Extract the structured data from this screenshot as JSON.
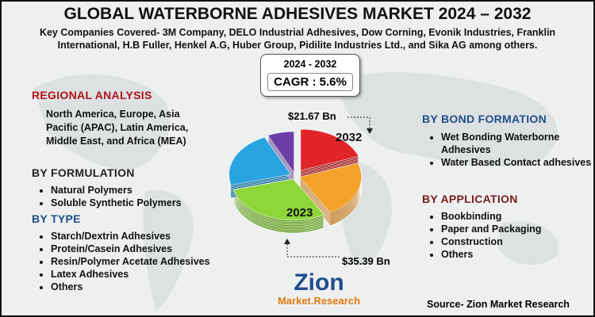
{
  "header": {
    "title": "GLOBAL WATERBORNE ADHESIVES MARKET 2024 – 2032",
    "subtitle": "Key Companies Covered- 3M Company, DELO Industrial Adhesives, Dow Corning, Evonik Industries, Franklin International, H.B Fuller, Henkel A.G, Huber Group, Pidilite Industries Ltd., and Sika AG among others."
  },
  "cagr": {
    "period": "2024 - 2032",
    "label": "CAGR : 5.6%"
  },
  "regional_analysis": {
    "title": "REGIONAL ANALYSIS",
    "text": "North America, Europe, Asia Pacific (APAC), Latin America, Middle East, and Africa (MEA)"
  },
  "by_formulation": {
    "title": "BY FORMULATION",
    "items": [
      "Natural Polymers",
      "Soluble Synthetic Polymers"
    ]
  },
  "by_type": {
    "title": "BY TYPE",
    "items": [
      "Starch/Dextrin Adhesives",
      "Protein/Casein Adhesives",
      "Resin/Polymer Acetate Adhesives",
      "Latex Adhesives",
      "Others"
    ]
  },
  "by_bond_formation": {
    "title": "BY BOND FORMATION",
    "items": [
      "Wet Bonding Waterborne Adhesives",
      "Water Based Contact adhesives"
    ]
  },
  "by_application": {
    "title": "BY APPLICATION",
    "items": [
      "Bookbinding",
      "Paper and Packaging",
      "Construction",
      "Others"
    ]
  },
  "pie": {
    "label_2032": "2032",
    "label_2023": "2023",
    "value_top": "$21.67 Bn",
    "value_bottom": "$35.39 Bn"
  },
  "logo": {
    "name": "Zion",
    "sub": "Market.Research"
  },
  "source": "Source- Zion Market Research"
}
